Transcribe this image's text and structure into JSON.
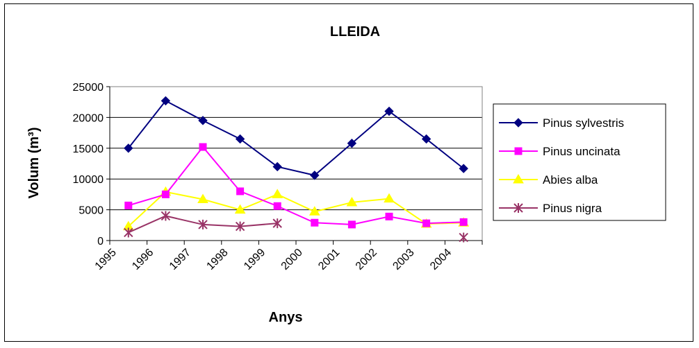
{
  "chart_data": {
    "type": "line",
    "title": "LLEIDA",
    "xlabel": "Anys",
    "ylabel": "Volum (m³)",
    "categories": [
      "1995",
      "1996",
      "1997",
      "1998",
      "1999",
      "2000",
      "2001",
      "2002",
      "2003",
      "2004"
    ],
    "ylim": [
      0,
      25000
    ],
    "yticks": [
      0,
      5000,
      10000,
      15000,
      20000,
      25000
    ],
    "grid": true,
    "legend": "right",
    "series": [
      {
        "name": "Pinus sylvestris",
        "color": "#000080",
        "marker": "diamond",
        "values": [
          15000,
          22700,
          19500,
          16500,
          12000,
          10600,
          15800,
          21000,
          16500,
          11700
        ]
      },
      {
        "name": "Pinus uncinata",
        "color": "#FF00FF",
        "marker": "square",
        "values": [
          5700,
          7500,
          15200,
          8000,
          5600,
          2900,
          2600,
          3900,
          2800,
          3000
        ]
      },
      {
        "name": "Abies alba",
        "color": "#FFFF00",
        "marker": "triangle",
        "values": [
          2300,
          7900,
          6700,
          5000,
          7500,
          4700,
          6200,
          6800,
          2700,
          2900
        ]
      },
      {
        "name": "Pinus nigra",
        "color": "#993366",
        "marker": "asterisk",
        "values": [
          1300,
          4000,
          2600,
          2300,
          2800,
          null,
          null,
          null,
          null,
          500
        ]
      }
    ]
  }
}
